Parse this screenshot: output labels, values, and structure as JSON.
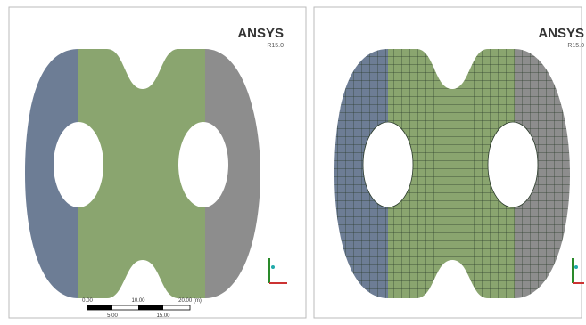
{
  "left_panel": {
    "logo": "ANSYS",
    "version": "R15.0",
    "scale_labels": [
      "0.00",
      "10.00",
      "20.00 (m)"
    ],
    "scale_sub_labels": [
      "5.00",
      "15.00"
    ]
  },
  "right_panel": {
    "logo": "ANSYS",
    "version": "R15.0"
  }
}
